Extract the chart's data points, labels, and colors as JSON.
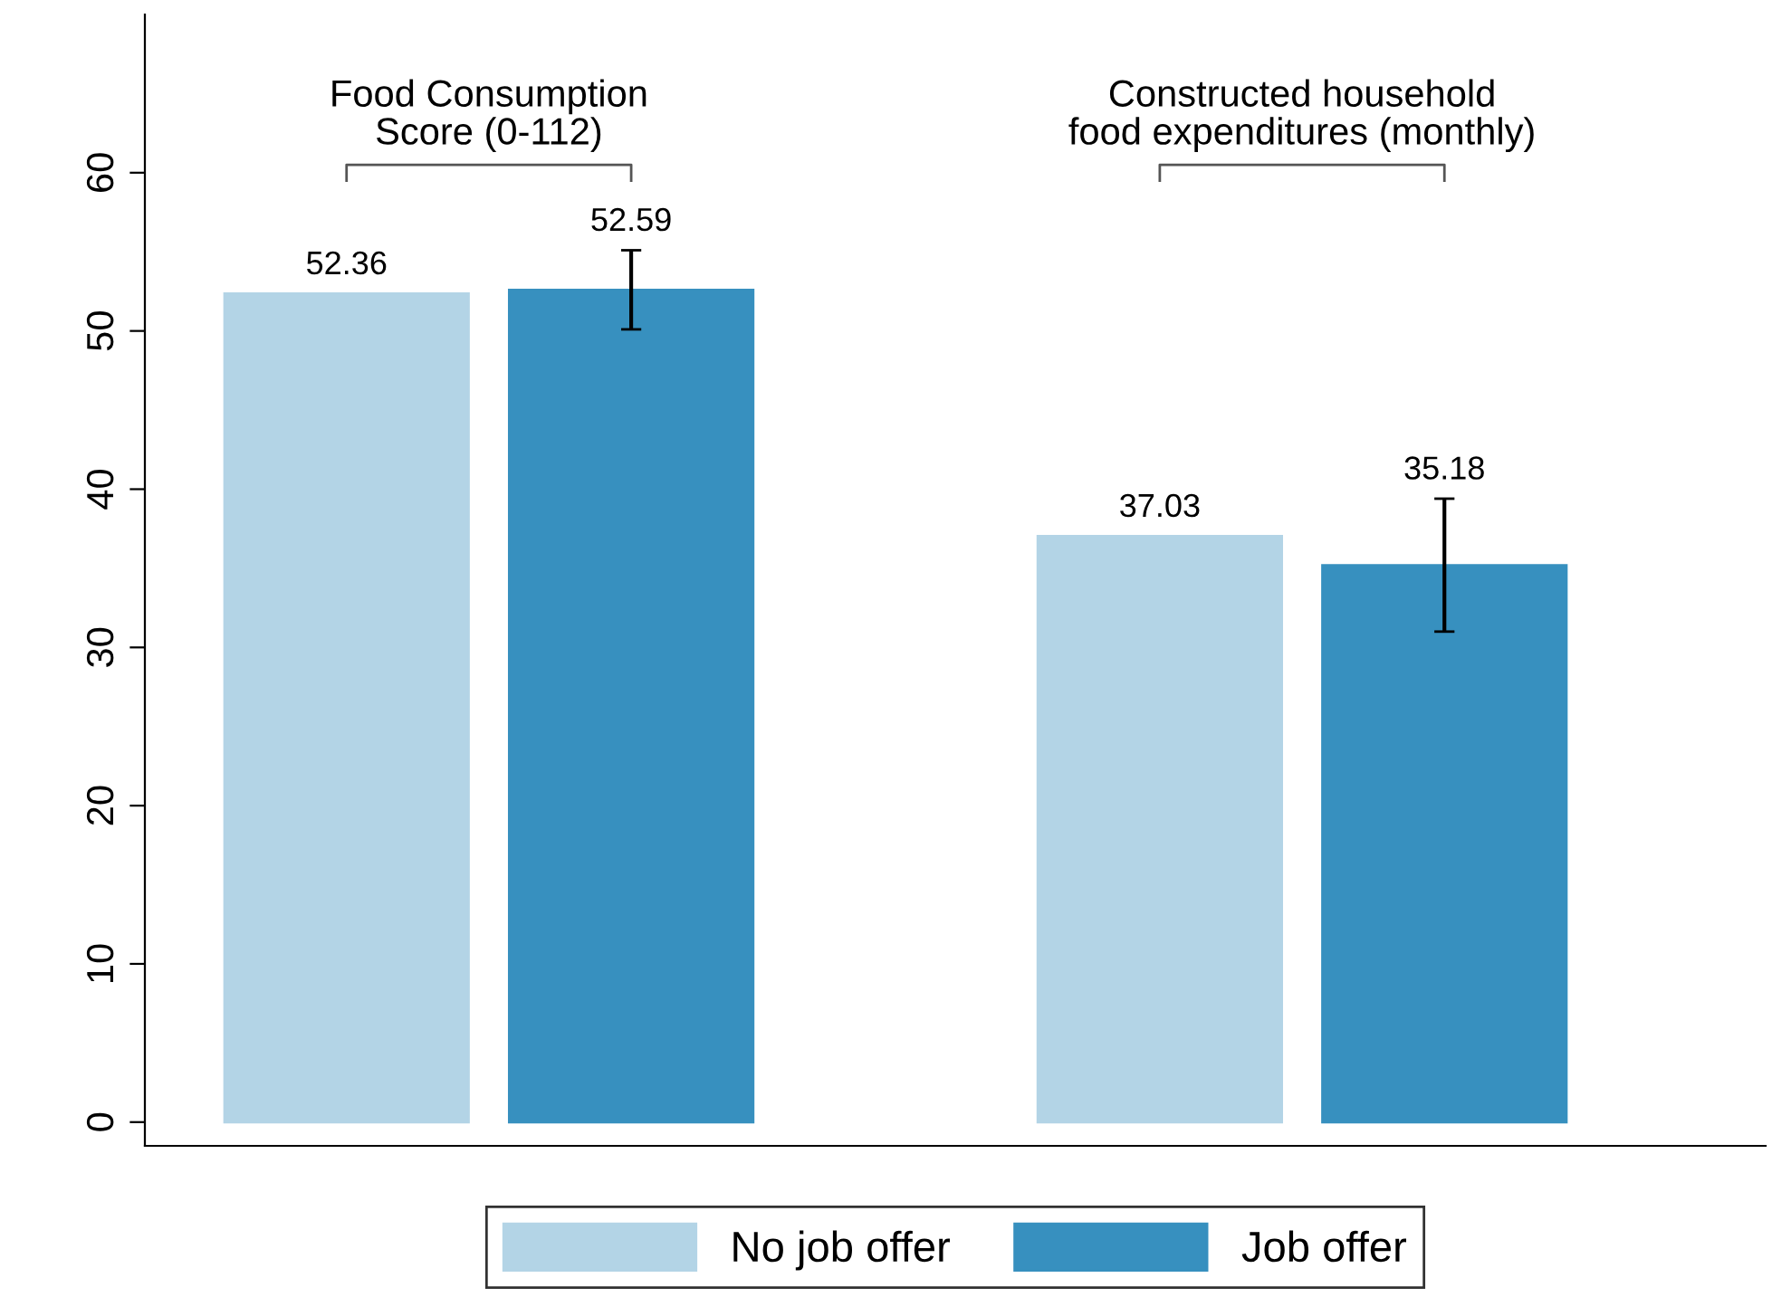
{
  "chart_data": {
    "type": "bar",
    "categories": [
      "Food Consumption\nScore (0-112)",
      "Constructed household\nfood expenditures (monthly)"
    ],
    "series": [
      {
        "name": "No job offer",
        "color": "#b3d4e6",
        "values": [
          52.36,
          37.03
        ],
        "errors": [
          null,
          null
        ]
      },
      {
        "name": "Job offer",
        "color": "#3790bf",
        "values": [
          52.59,
          35.18
        ],
        "errors": [
          [
            50.1,
            55.1
          ],
          [
            31.0,
            39.4
          ]
        ]
      }
    ],
    "ylim": [
      -1.5,
      70
    ],
    "yticks": [
      0,
      10,
      20,
      30,
      40,
      50,
      60
    ],
    "data_labels": true,
    "grid": false,
    "legend": "bottom"
  }
}
